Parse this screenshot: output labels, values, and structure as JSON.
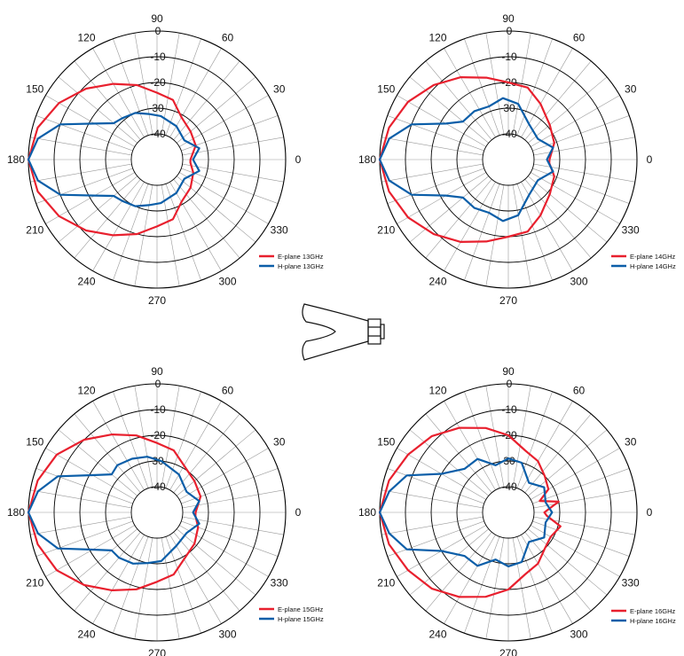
{
  "colors": {
    "e_plane": "#e8202e",
    "h_plane": "#0b5ea8",
    "grid": "#000000",
    "spoke": "#9a9a9a"
  },
  "center_icon": "horn-antenna-icon",
  "chart_data": [
    {
      "type": "polar-line",
      "angle_ticks": [
        "0",
        "30",
        "60",
        "90",
        "120",
        "150",
        "180",
        "210",
        "240",
        "270",
        "300",
        "330"
      ],
      "radial_ticks": [
        "-40",
        "30",
        "-20",
        "-10",
        "0"
      ],
      "r_range": [
        -40,
        0
      ],
      "legend_position": "bottom-right",
      "series": [
        {
          "name": "E-plane 13GHz",
          "points": [
            [
              0,
              -37
            ],
            [
              20,
              -34
            ],
            [
              40,
              -33
            ],
            [
              60,
              -31
            ],
            [
              75,
              -26
            ],
            [
              90,
              -24
            ],
            [
              105,
              -20
            ],
            [
              120,
              -16
            ],
            [
              135,
              -11
            ],
            [
              150,
              -6
            ],
            [
              165,
              -2
            ],
            [
              180,
              0
            ],
            [
              195,
              -2
            ],
            [
              210,
              -6
            ],
            [
              225,
              -11
            ],
            [
              240,
              -16
            ],
            [
              255,
              -20
            ],
            [
              270,
              -24
            ],
            [
              285,
              -26
            ],
            [
              300,
              -31
            ],
            [
              320,
              -33
            ],
            [
              340,
              -35
            ],
            [
              355,
              -37
            ]
          ]
        },
        {
          "name": "H-plane 13GHz",
          "points": [
            [
              0,
              -36
            ],
            [
              15,
              -33
            ],
            [
              35,
              -37
            ],
            [
              60,
              -35
            ],
            [
              85,
              -33
            ],
            [
              100,
              -32
            ],
            [
              115,
              -30
            ],
            [
              130,
              -29
            ],
            [
              140,
              -28
            ],
            [
              150,
              -22
            ],
            [
              160,
              -10
            ],
            [
              170,
              -3
            ],
            [
              180,
              0
            ],
            [
              190,
              -3
            ],
            [
              200,
              -10
            ],
            [
              210,
              -22
            ],
            [
              220,
              -28
            ],
            [
              230,
              -29
            ],
            [
              245,
              -30
            ],
            [
              260,
              -32
            ],
            [
              275,
              -33
            ],
            [
              300,
              -35
            ],
            [
              325,
              -37
            ],
            [
              345,
              -33
            ]
          ]
        }
      ]
    },
    {
      "type": "polar-line",
      "angle_ticks": [
        "0",
        "30",
        "60",
        "90",
        "120",
        "150",
        "180",
        "210",
        "240",
        "270",
        "300",
        "330"
      ],
      "radial_ticks": [
        "-40",
        "30",
        "-20",
        "-10",
        "0"
      ],
      "r_range": [
        -40,
        0
      ],
      "legend_position": "bottom-right",
      "series": [
        {
          "name": "E-plane 14GHz",
          "points": [
            [
              0,
              -34
            ],
            [
              20,
              -31
            ],
            [
              40,
              -29
            ],
            [
              60,
              -25
            ],
            [
              75,
              -21
            ],
            [
              90,
              -20
            ],
            [
              105,
              -17
            ],
            [
              120,
              -13
            ],
            [
              135,
              -9
            ],
            [
              150,
              -5
            ],
            [
              165,
              -2
            ],
            [
              180,
              0
            ],
            [
              195,
              -2
            ],
            [
              210,
              -5
            ],
            [
              225,
              -9
            ],
            [
              240,
              -13
            ],
            [
              255,
              -17
            ],
            [
              270,
              -20
            ],
            [
              285,
              -21
            ],
            [
              300,
              -25
            ],
            [
              320,
              -29
            ],
            [
              340,
              -31
            ],
            [
              355,
              -34
            ]
          ]
        },
        {
          "name": "H-plane 14GHz",
          "points": [
            [
              0,
              -35
            ],
            [
              15,
              -32
            ],
            [
              35,
              -36
            ],
            [
              60,
              -34
            ],
            [
              80,
              -28
            ],
            [
              95,
              -26
            ],
            [
              110,
              -28
            ],
            [
              125,
              -27
            ],
            [
              140,
              -27
            ],
            [
              150,
              -22
            ],
            [
              160,
              -10
            ],
            [
              170,
              -3
            ],
            [
              180,
              0
            ],
            [
              190,
              -3
            ],
            [
              200,
              -10
            ],
            [
              210,
              -22
            ],
            [
              220,
              -27
            ],
            [
              235,
              -27
            ],
            [
              250,
              -28
            ],
            [
              265,
              -26
            ],
            [
              280,
              -28
            ],
            [
              300,
              -34
            ],
            [
              325,
              -36
            ],
            [
              345,
              -32
            ]
          ]
        }
      ]
    },
    {
      "type": "polar-line",
      "angle_ticks": [
        "0",
        "30",
        "60",
        "90",
        "120",
        "150",
        "180",
        "210",
        "240",
        "270",
        "300",
        "330"
      ],
      "radial_ticks": [
        "-40",
        "30",
        "-20",
        "-10",
        "0"
      ],
      "r_range": [
        -40,
        0
      ],
      "legend_position": "bottom-right",
      "series": [
        {
          "name": "E-plane 15GHz",
          "points": [
            [
              0,
              -35
            ],
            [
              20,
              -32
            ],
            [
              40,
              -31
            ],
            [
              60,
              -29
            ],
            [
              75,
              -25
            ],
            [
              90,
              -23
            ],
            [
              105,
              -19
            ],
            [
              120,
              -15
            ],
            [
              135,
              -10
            ],
            [
              150,
              -5
            ],
            [
              165,
              -2
            ],
            [
              180,
              0
            ],
            [
              195,
              -2
            ],
            [
              210,
              -5
            ],
            [
              225,
              -10
            ],
            [
              240,
              -15
            ],
            [
              255,
              -19
            ],
            [
              270,
              -23
            ],
            [
              285,
              -25
            ],
            [
              300,
              -29
            ],
            [
              320,
              -31
            ],
            [
              340,
              -33
            ],
            [
              355,
              -35
            ]
          ]
        },
        {
          "name": "H-plane 15GHz",
          "points": [
            [
              0,
              -36
            ],
            [
              15,
              -33
            ],
            [
              35,
              -36
            ],
            [
              60,
              -33
            ],
            [
              85,
              -30
            ],
            [
              100,
              -28
            ],
            [
              115,
              -27
            ],
            [
              130,
              -26
            ],
            [
              140,
              -27
            ],
            [
              150,
              -21
            ],
            [
              160,
              -9
            ],
            [
              170,
              -3
            ],
            [
              180,
              0
            ],
            [
              190,
              -3
            ],
            [
              200,
              -9
            ],
            [
              210,
              -21
            ],
            [
              220,
              -27
            ],
            [
              230,
              -27
            ],
            [
              245,
              -28
            ],
            [
              260,
              -30
            ],
            [
              275,
              -31
            ],
            [
              300,
              -35
            ],
            [
              325,
              -36
            ],
            [
              345,
              -33
            ]
          ]
        }
      ]
    },
    {
      "type": "polar-line",
      "angle_ticks": [
        "0",
        "30",
        "60",
        "90",
        "120",
        "150",
        "180",
        "210",
        "240",
        "270",
        "300",
        "330"
      ],
      "radial_ticks": [
        "-40",
        "30",
        "-20",
        "-10",
        "0"
      ],
      "r_range": [
        -40,
        0
      ],
      "legend_position": "bottom-right",
      "series": [
        {
          "name": "E-plane 16GHz",
          "points": [
            [
              0,
              -36
            ],
            [
              12,
              -30
            ],
            [
              20,
              -37
            ],
            [
              30,
              -32
            ],
            [
              45,
              -30
            ],
            [
              60,
              -27
            ],
            [
              75,
              -25
            ],
            [
              90,
              -20
            ],
            [
              105,
              -16
            ],
            [
              120,
              -12
            ],
            [
              135,
              -8
            ],
            [
              150,
              -5
            ],
            [
              165,
              -2
            ],
            [
              180,
              0
            ],
            [
              195,
              -2
            ],
            [
              210,
              -5
            ],
            [
              225,
              -8
            ],
            [
              240,
              -12
            ],
            [
              255,
              -16
            ],
            [
              270,
              -20
            ],
            [
              285,
              -25
            ],
            [
              300,
              -27
            ],
            [
              315,
              -30
            ],
            [
              330,
              -31
            ],
            [
              345,
              -29
            ],
            [
              355,
              -35
            ]
          ]
        },
        {
          "name": "H-plane 16GHz",
          "points": [
            [
              0,
              -33
            ],
            [
              15,
              -35
            ],
            [
              35,
              -33
            ],
            [
              55,
              -36
            ],
            [
              75,
              -30
            ],
            [
              90,
              -29
            ],
            [
              105,
              -31
            ],
            [
              120,
              -26
            ],
            [
              135,
              -26
            ],
            [
              150,
              -20
            ],
            [
              160,
              -8
            ],
            [
              170,
              -3
            ],
            [
              180,
              0
            ],
            [
              190,
              -3
            ],
            [
              200,
              -8
            ],
            [
              210,
              -20
            ],
            [
              225,
              -26
            ],
            [
              240,
              -26
            ],
            [
              255,
              -31
            ],
            [
              270,
              -29
            ],
            [
              285,
              -30
            ],
            [
              305,
              -36
            ],
            [
              325,
              -33
            ],
            [
              345,
              -35
            ]
          ]
        }
      ]
    }
  ]
}
